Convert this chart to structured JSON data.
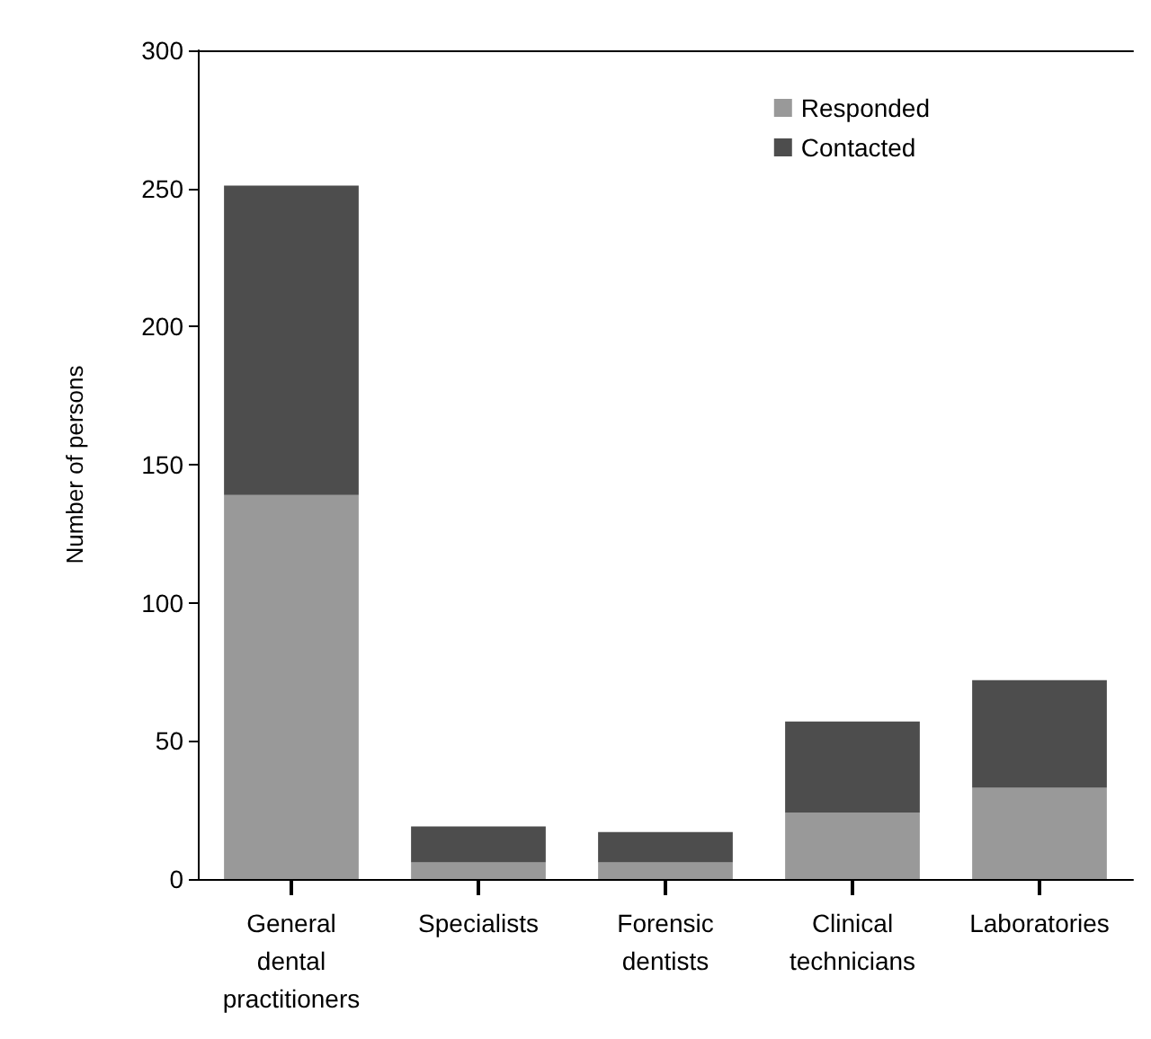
{
  "chart_data": {
    "type": "bar",
    "ylabel": "Number of persons",
    "categories": [
      "General\ndental\npractitioners",
      "Specialists",
      "Forensic\ndentists",
      "Clinical\ntechnicians",
      "Laboratories"
    ],
    "stacked": true,
    "series": [
      {
        "name": "Responded",
        "color": "#999999",
        "values": [
          139,
          6,
          6,
          24,
          33
        ]
      },
      {
        "name": "Contacted",
        "color": "#4d4d4d",
        "values": [
          112,
          13,
          11,
          33,
          39
        ]
      }
    ],
    "ylim": [
      0,
      300
    ],
    "yticks": [
      0,
      50,
      100,
      150,
      200,
      250,
      300
    ],
    "grid": false,
    "legend": "top right"
  }
}
